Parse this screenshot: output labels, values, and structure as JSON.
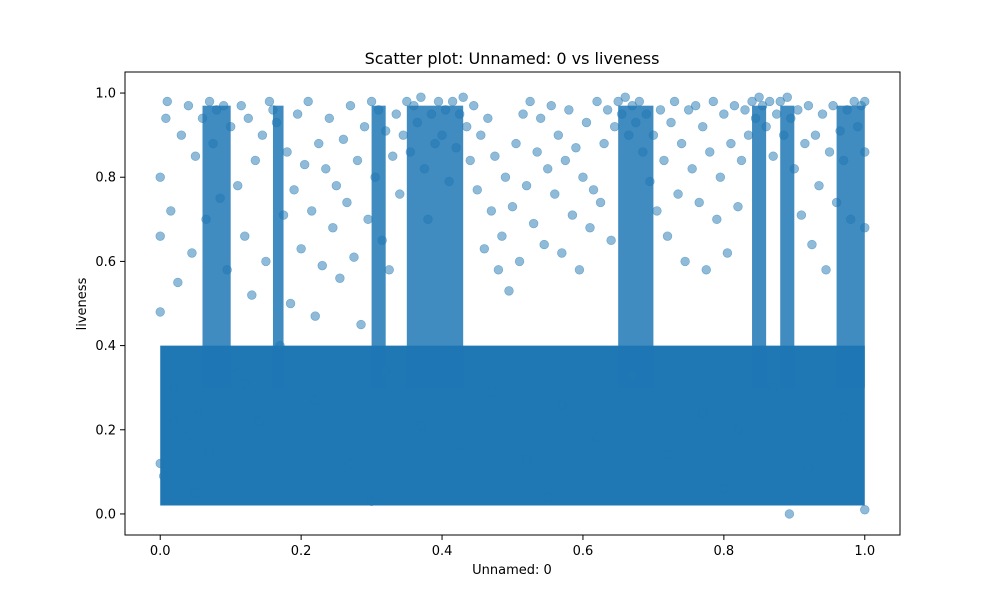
{
  "chart_data": {
    "type": "scatter",
    "title": "Scatter plot: Unnamed: 0 vs liveness",
    "xlabel": "Unnamed: 0",
    "ylabel": "liveness",
    "xlim": [
      -0.05,
      1.05
    ],
    "ylim": [
      -0.05,
      1.05
    ],
    "x_ticks": [
      0.0,
      0.2,
      0.4,
      0.6,
      0.8,
      1.0
    ],
    "y_ticks": [
      0.0,
      0.2,
      0.4,
      0.6,
      0.8,
      1.0
    ],
    "x_tick_labels": [
      "0.0",
      "0.2",
      "0.4",
      "0.6",
      "0.8",
      "1.0"
    ],
    "y_tick_labels": [
      "0.0",
      "0.2",
      "0.4",
      "0.6",
      "0.8",
      "1.0"
    ],
    "grid": false,
    "legend": "none",
    "marker_color": "#1f77b4",
    "marker_alpha": 0.5,
    "points": [
      [
        0.0,
        0.8
      ],
      [
        0.0,
        0.66
      ],
      [
        0.0,
        0.48
      ],
      [
        0.0,
        0.12
      ],
      [
        0.005,
        0.09
      ],
      [
        0.008,
        0.94
      ],
      [
        0.01,
        0.98
      ],
      [
        0.015,
        0.72
      ],
      [
        0.02,
        0.3
      ],
      [
        0.025,
        0.55
      ],
      [
        0.03,
        0.9
      ],
      [
        0.035,
        0.18
      ],
      [
        0.04,
        0.97
      ],
      [
        0.045,
        0.62
      ],
      [
        0.05,
        0.85
      ],
      [
        0.055,
        0.25
      ],
      [
        0.06,
        0.94
      ],
      [
        0.065,
        0.7
      ],
      [
        0.07,
        0.98
      ],
      [
        0.075,
        0.88
      ],
      [
        0.08,
        0.96
      ],
      [
        0.085,
        0.75
      ],
      [
        0.09,
        0.97
      ],
      [
        0.095,
        0.58
      ],
      [
        0.1,
        0.92
      ],
      [
        0.105,
        0.35
      ],
      [
        0.11,
        0.78
      ],
      [
        0.115,
        0.97
      ],
      [
        0.12,
        0.66
      ],
      [
        0.125,
        0.94
      ],
      [
        0.13,
        0.52
      ],
      [
        0.135,
        0.84
      ],
      [
        0.14,
        0.22
      ],
      [
        0.145,
        0.9
      ],
      [
        0.15,
        0.6
      ],
      [
        0.155,
        0.98
      ],
      [
        0.16,
        0.96
      ],
      [
        0.165,
        0.93
      ],
      [
        0.17,
        0.4
      ],
      [
        0.175,
        0.71
      ],
      [
        0.18,
        0.86
      ],
      [
        0.185,
        0.5
      ],
      [
        0.19,
        0.77
      ],
      [
        0.195,
        0.95
      ],
      [
        0.2,
        0.63
      ],
      [
        0.205,
        0.83
      ],
      [
        0.21,
        0.98
      ],
      [
        0.215,
        0.72
      ],
      [
        0.22,
        0.47
      ],
      [
        0.225,
        0.88
      ],
      [
        0.23,
        0.59
      ],
      [
        0.235,
        0.82
      ],
      [
        0.24,
        0.94
      ],
      [
        0.245,
        0.68
      ],
      [
        0.25,
        0.78
      ],
      [
        0.255,
        0.56
      ],
      [
        0.26,
        0.89
      ],
      [
        0.265,
        0.74
      ],
      [
        0.27,
        0.97
      ],
      [
        0.275,
        0.61
      ],
      [
        0.28,
        0.84
      ],
      [
        0.285,
        0.45
      ],
      [
        0.29,
        0.92
      ],
      [
        0.295,
        0.7
      ],
      [
        0.3,
        0.98
      ],
      [
        0.305,
        0.8
      ],
      [
        0.31,
        0.96
      ],
      [
        0.315,
        0.65
      ],
      [
        0.32,
        0.91
      ],
      [
        0.325,
        0.58
      ],
      [
        0.33,
        0.85
      ],
      [
        0.335,
        0.95
      ],
      [
        0.34,
        0.76
      ],
      [
        0.345,
        0.9
      ],
      [
        0.35,
        0.98
      ],
      [
        0.355,
        0.86
      ],
      [
        0.36,
        0.97
      ],
      [
        0.365,
        0.93
      ],
      [
        0.37,
        0.99
      ],
      [
        0.375,
        0.82
      ],
      [
        0.38,
        0.7
      ],
      [
        0.385,
        0.95
      ],
      [
        0.39,
        0.88
      ],
      [
        0.395,
        0.98
      ],
      [
        0.4,
        0.9
      ],
      [
        0.405,
        0.96
      ],
      [
        0.41,
        0.79
      ],
      [
        0.415,
        0.98
      ],
      [
        0.42,
        0.87
      ],
      [
        0.425,
        0.95
      ],
      [
        0.43,
        0.99
      ],
      [
        0.435,
        0.92
      ],
      [
        0.44,
        0.84
      ],
      [
        0.445,
        0.97
      ],
      [
        0.45,
        0.77
      ],
      [
        0.455,
        0.9
      ],
      [
        0.46,
        0.63
      ],
      [
        0.465,
        0.94
      ],
      [
        0.47,
        0.72
      ],
      [
        0.475,
        0.85
      ],
      [
        0.48,
        0.58
      ],
      [
        0.485,
        0.66
      ],
      [
        0.49,
        0.8
      ],
      [
        0.495,
        0.53
      ],
      [
        0.5,
        0.73
      ],
      [
        0.505,
        0.88
      ],
      [
        0.51,
        0.6
      ],
      [
        0.515,
        0.95
      ],
      [
        0.52,
        0.78
      ],
      [
        0.525,
        0.98
      ],
      [
        0.53,
        0.69
      ],
      [
        0.535,
        0.86
      ],
      [
        0.54,
        0.94
      ],
      [
        0.545,
        0.64
      ],
      [
        0.55,
        0.82
      ],
      [
        0.555,
        0.97
      ],
      [
        0.56,
        0.76
      ],
      [
        0.565,
        0.9
      ],
      [
        0.57,
        0.62
      ],
      [
        0.575,
        0.84
      ],
      [
        0.58,
        0.96
      ],
      [
        0.585,
        0.71
      ],
      [
        0.59,
        0.87
      ],
      [
        0.595,
        0.58
      ],
      [
        0.6,
        0.8
      ],
      [
        0.605,
        0.93
      ],
      [
        0.61,
        0.68
      ],
      [
        0.615,
        0.77
      ],
      [
        0.62,
        0.98
      ],
      [
        0.625,
        0.74
      ],
      [
        0.63,
        0.88
      ],
      [
        0.635,
        0.96
      ],
      [
        0.64,
        0.65
      ],
      [
        0.645,
        0.92
      ],
      [
        0.65,
        0.98
      ],
      [
        0.655,
        0.95
      ],
      [
        0.66,
        0.99
      ],
      [
        0.665,
        0.9
      ],
      [
        0.67,
        0.97
      ],
      [
        0.675,
        0.93
      ],
      [
        0.68,
        0.98
      ],
      [
        0.685,
        0.86
      ],
      [
        0.69,
        0.95
      ],
      [
        0.695,
        0.79
      ],
      [
        0.7,
        0.9
      ],
      [
        0.705,
        0.72
      ],
      [
        0.71,
        0.96
      ],
      [
        0.715,
        0.84
      ],
      [
        0.72,
        0.66
      ],
      [
        0.725,
        0.93
      ],
      [
        0.73,
        0.98
      ],
      [
        0.735,
        0.76
      ],
      [
        0.74,
        0.88
      ],
      [
        0.745,
        0.6
      ],
      [
        0.75,
        0.96
      ],
      [
        0.755,
        0.82
      ],
      [
        0.76,
        0.97
      ],
      [
        0.765,
        0.74
      ],
      [
        0.77,
        0.92
      ],
      [
        0.775,
        0.58
      ],
      [
        0.78,
        0.86
      ],
      [
        0.785,
        0.98
      ],
      [
        0.79,
        0.7
      ],
      [
        0.795,
        0.8
      ],
      [
        0.8,
        0.95
      ],
      [
        0.805,
        0.62
      ],
      [
        0.81,
        0.88
      ],
      [
        0.815,
        0.97
      ],
      [
        0.82,
        0.73
      ],
      [
        0.825,
        0.84
      ],
      [
        0.83,
        0.96
      ],
      [
        0.835,
        0.9
      ],
      [
        0.84,
        0.98
      ],
      [
        0.845,
        0.94
      ],
      [
        0.85,
        0.99
      ],
      [
        0.855,
        0.97
      ],
      [
        0.86,
        0.92
      ],
      [
        0.865,
        0.98
      ],
      [
        0.87,
        0.85
      ],
      [
        0.875,
        0.95
      ],
      [
        0.88,
        0.98
      ],
      [
        0.885,
        0.9
      ],
      [
        0.89,
        0.99
      ],
      [
        0.893,
        0.0
      ],
      [
        0.895,
        0.94
      ],
      [
        0.9,
        0.82
      ],
      [
        0.905,
        0.96
      ],
      [
        0.91,
        0.71
      ],
      [
        0.915,
        0.88
      ],
      [
        0.92,
        0.97
      ],
      [
        0.925,
        0.64
      ],
      [
        0.93,
        0.9
      ],
      [
        0.935,
        0.78
      ],
      [
        0.94,
        0.95
      ],
      [
        0.945,
        0.58
      ],
      [
        0.95,
        0.86
      ],
      [
        0.955,
        0.97
      ],
      [
        0.96,
        0.74
      ],
      [
        0.965,
        0.91
      ],
      [
        0.97,
        0.84
      ],
      [
        0.975,
        0.96
      ],
      [
        0.98,
        0.7
      ],
      [
        0.985,
        0.98
      ],
      [
        0.99,
        0.92
      ],
      [
        0.995,
        0.97
      ],
      [
        1.0,
        0.98
      ],
      [
        1.0,
        0.86
      ],
      [
        1.0,
        0.68
      ],
      [
        1.0,
        0.01
      ],
      [
        0.02,
        0.22
      ],
      [
        0.07,
        0.15
      ],
      [
        0.12,
        0.31
      ],
      [
        0.17,
        0.19
      ],
      [
        0.22,
        0.27
      ],
      [
        0.27,
        0.12
      ],
      [
        0.32,
        0.34
      ],
      [
        0.37,
        0.21
      ],
      [
        0.42,
        0.16
      ],
      [
        0.47,
        0.29
      ],
      [
        0.52,
        0.13
      ],
      [
        0.57,
        0.26
      ],
      [
        0.62,
        0.18
      ],
      [
        0.67,
        0.33
      ],
      [
        0.72,
        0.14
      ],
      [
        0.77,
        0.24
      ],
      [
        0.82,
        0.2
      ],
      [
        0.87,
        0.3
      ],
      [
        0.92,
        0.11
      ],
      [
        0.97,
        0.23
      ],
      [
        0.05,
        0.05
      ],
      [
        0.3,
        0.03
      ],
      [
        0.55,
        0.04
      ],
      [
        0.8,
        0.06
      ]
    ],
    "dense_band": {
      "x_range": [
        0.0,
        1.0
      ],
      "y_range": [
        0.02,
        0.4
      ],
      "note_color": "#1f77b4"
    }
  }
}
